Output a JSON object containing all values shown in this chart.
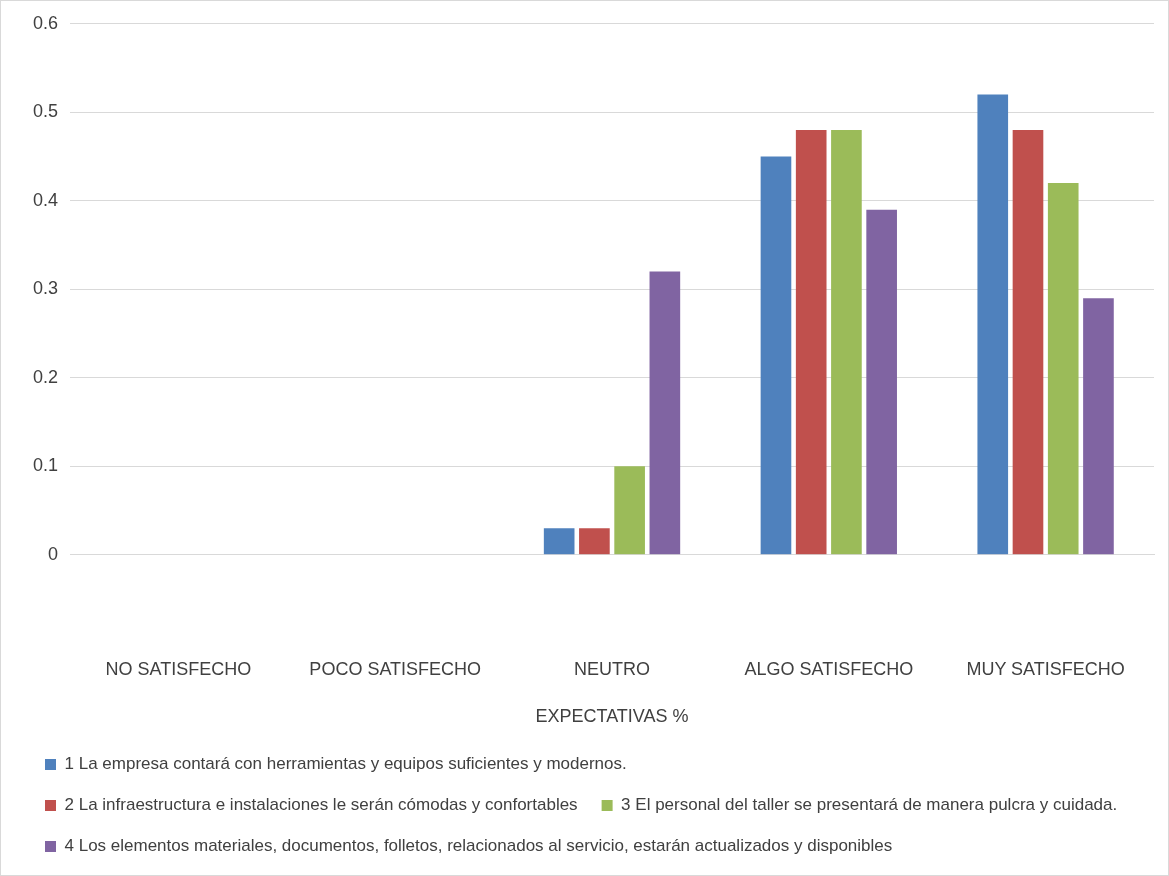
{
  "chart_data": {
    "type": "bar",
    "xlabel": "EXPECTATIVAS %",
    "categories": [
      "NO SATISFECHO",
      "POCO SATISFECHO",
      "NEUTRO",
      "ALGO SATISFECHO",
      "MUY SATISFECHO"
    ],
    "series": [
      {
        "name": "1 La empresa contará con herramientas y equipos suficientes y modernos.",
        "color": "#4f81bd",
        "values": [
          0,
          0,
          0.03,
          0.45,
          0.52
        ]
      },
      {
        "name": "2 La infraestructura e instalaciones le serán cómodas y confortables",
        "color": "#c0504d",
        "values": [
          0,
          0,
          0.03,
          0.48,
          0.48
        ]
      },
      {
        "name": "3 El personal del taller se presentará de manera pulcra y cuidada.",
        "color": "#9bbb59",
        "values": [
          0,
          0,
          0.1,
          0.48,
          0.42
        ]
      },
      {
        "name": "4 Los elementos materiales, documentos, folletos, relacionados al servicio, estarán actualizados y disponibles",
        "color": "#8064a2",
        "values": [
          0,
          0,
          0.32,
          0.39,
          0.29
        ]
      }
    ],
    "ylim": [
      0,
      0.6
    ],
    "yticks": [
      0,
      0.1,
      0.2,
      0.3,
      0.4,
      0.5,
      0.6
    ],
    "grid": "y",
    "legend": "bottom"
  }
}
